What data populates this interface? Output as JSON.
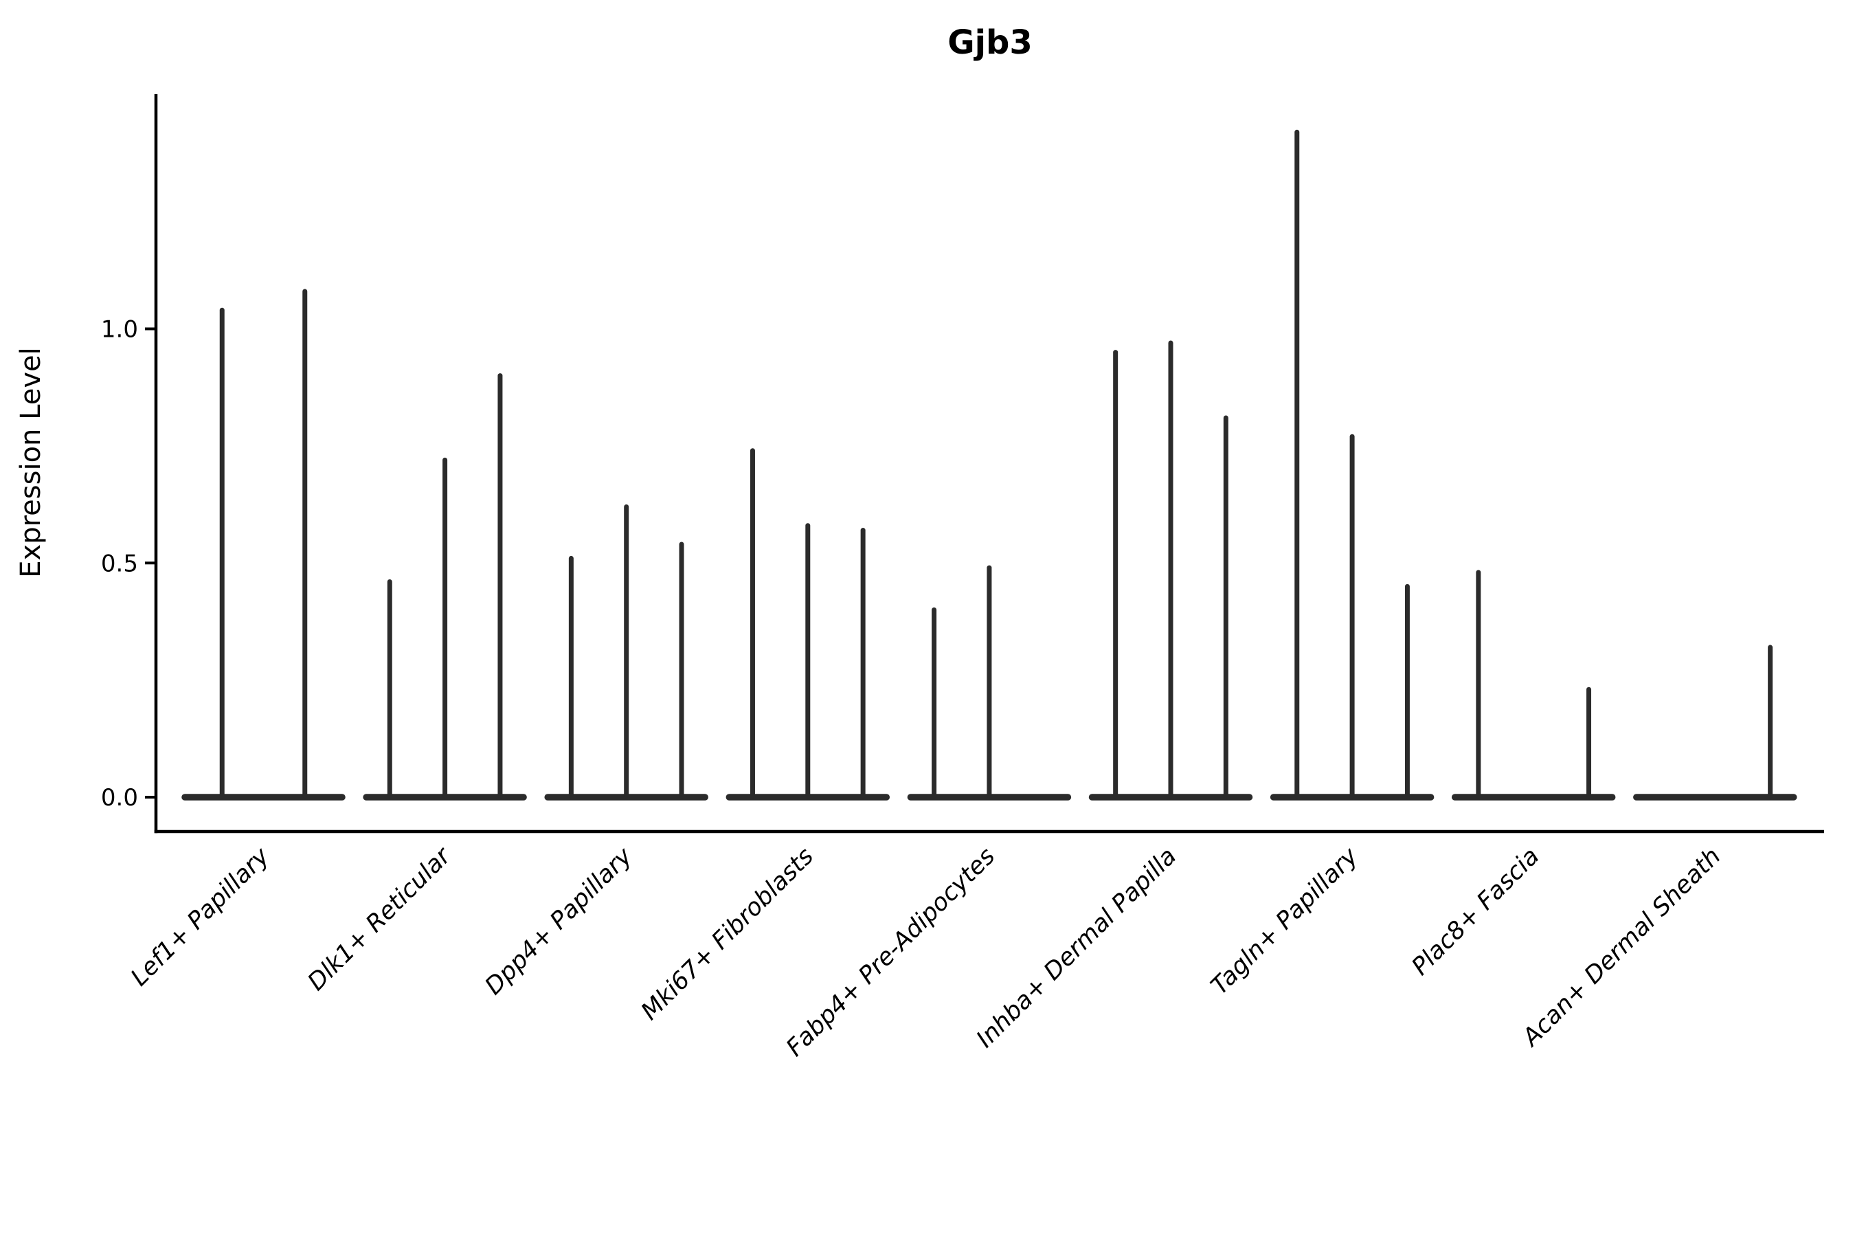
{
  "title": "Gjb3",
  "y_axis": {
    "label": "Expression Level",
    "ticks": [
      {
        "value": 0.0,
        "label": "0.0"
      },
      {
        "value": 0.5,
        "label": "0.5"
      },
      {
        "value": 1.0,
        "label": "1.0"
      }
    ]
  },
  "chart_data": {
    "type": "violin",
    "title": "Gjb3",
    "xlabel": "",
    "ylabel": "Expression Level",
    "ylim": [
      -0.07,
      1.5
    ],
    "yticks": [
      0.0,
      0.5,
      1.0
    ],
    "grid": false,
    "legend": "none",
    "description": "Needle-shaped violins (sparse expression): each cell-type category shows 2-3 thin violins collapsed to a flat baseline at 0 with a thin spike up to the max expression value; 0 means a flat violin with no spike.",
    "categories": [
      "Lef1+ Papillary",
      "Dlk1+ Reticular",
      "Dpp4+ Papillary",
      "Mki67+ Fibroblasts",
      "Fabp4+ Pre-Adipocytes",
      "Inhba+ Dermal Papilla",
      "Tagln+ Papillary",
      "Plac8+ Fascia",
      "Acan+ Dermal Sheath"
    ],
    "groups": [
      {
        "category": "Lef1+ Papillary",
        "violin_max_expression": [
          1.04,
          1.08
        ]
      },
      {
        "category": "Dlk1+ Reticular",
        "violin_max_expression": [
          0.46,
          0.72,
          0.9
        ]
      },
      {
        "category": "Dpp4+ Papillary",
        "violin_max_expression": [
          0.51,
          0.62,
          0.54
        ]
      },
      {
        "category": "Mki67+ Fibroblasts",
        "violin_max_expression": [
          0.74,
          0.58,
          0.57
        ]
      },
      {
        "category": "Fabp4+ Pre-Adipocytes",
        "violin_max_expression": [
          0.4,
          0.49,
          0
        ]
      },
      {
        "category": "Inhba+ Dermal Papilla",
        "violin_max_expression": [
          0.95,
          0.97,
          0.81
        ]
      },
      {
        "category": "Tagln+ Papillary",
        "violin_max_expression": [
          1.42,
          0.77,
          0.45
        ]
      },
      {
        "category": "Plac8+ Fascia",
        "violin_max_expression": [
          0.48,
          0,
          0.23
        ]
      },
      {
        "category": "Acan+ Dermal Sheath",
        "violin_max_expression": [
          0,
          0,
          0.32
        ]
      }
    ]
  },
  "style": {
    "violin_color": "#2b2b2b",
    "axis_color": "#000000",
    "background": "#ffffff"
  }
}
